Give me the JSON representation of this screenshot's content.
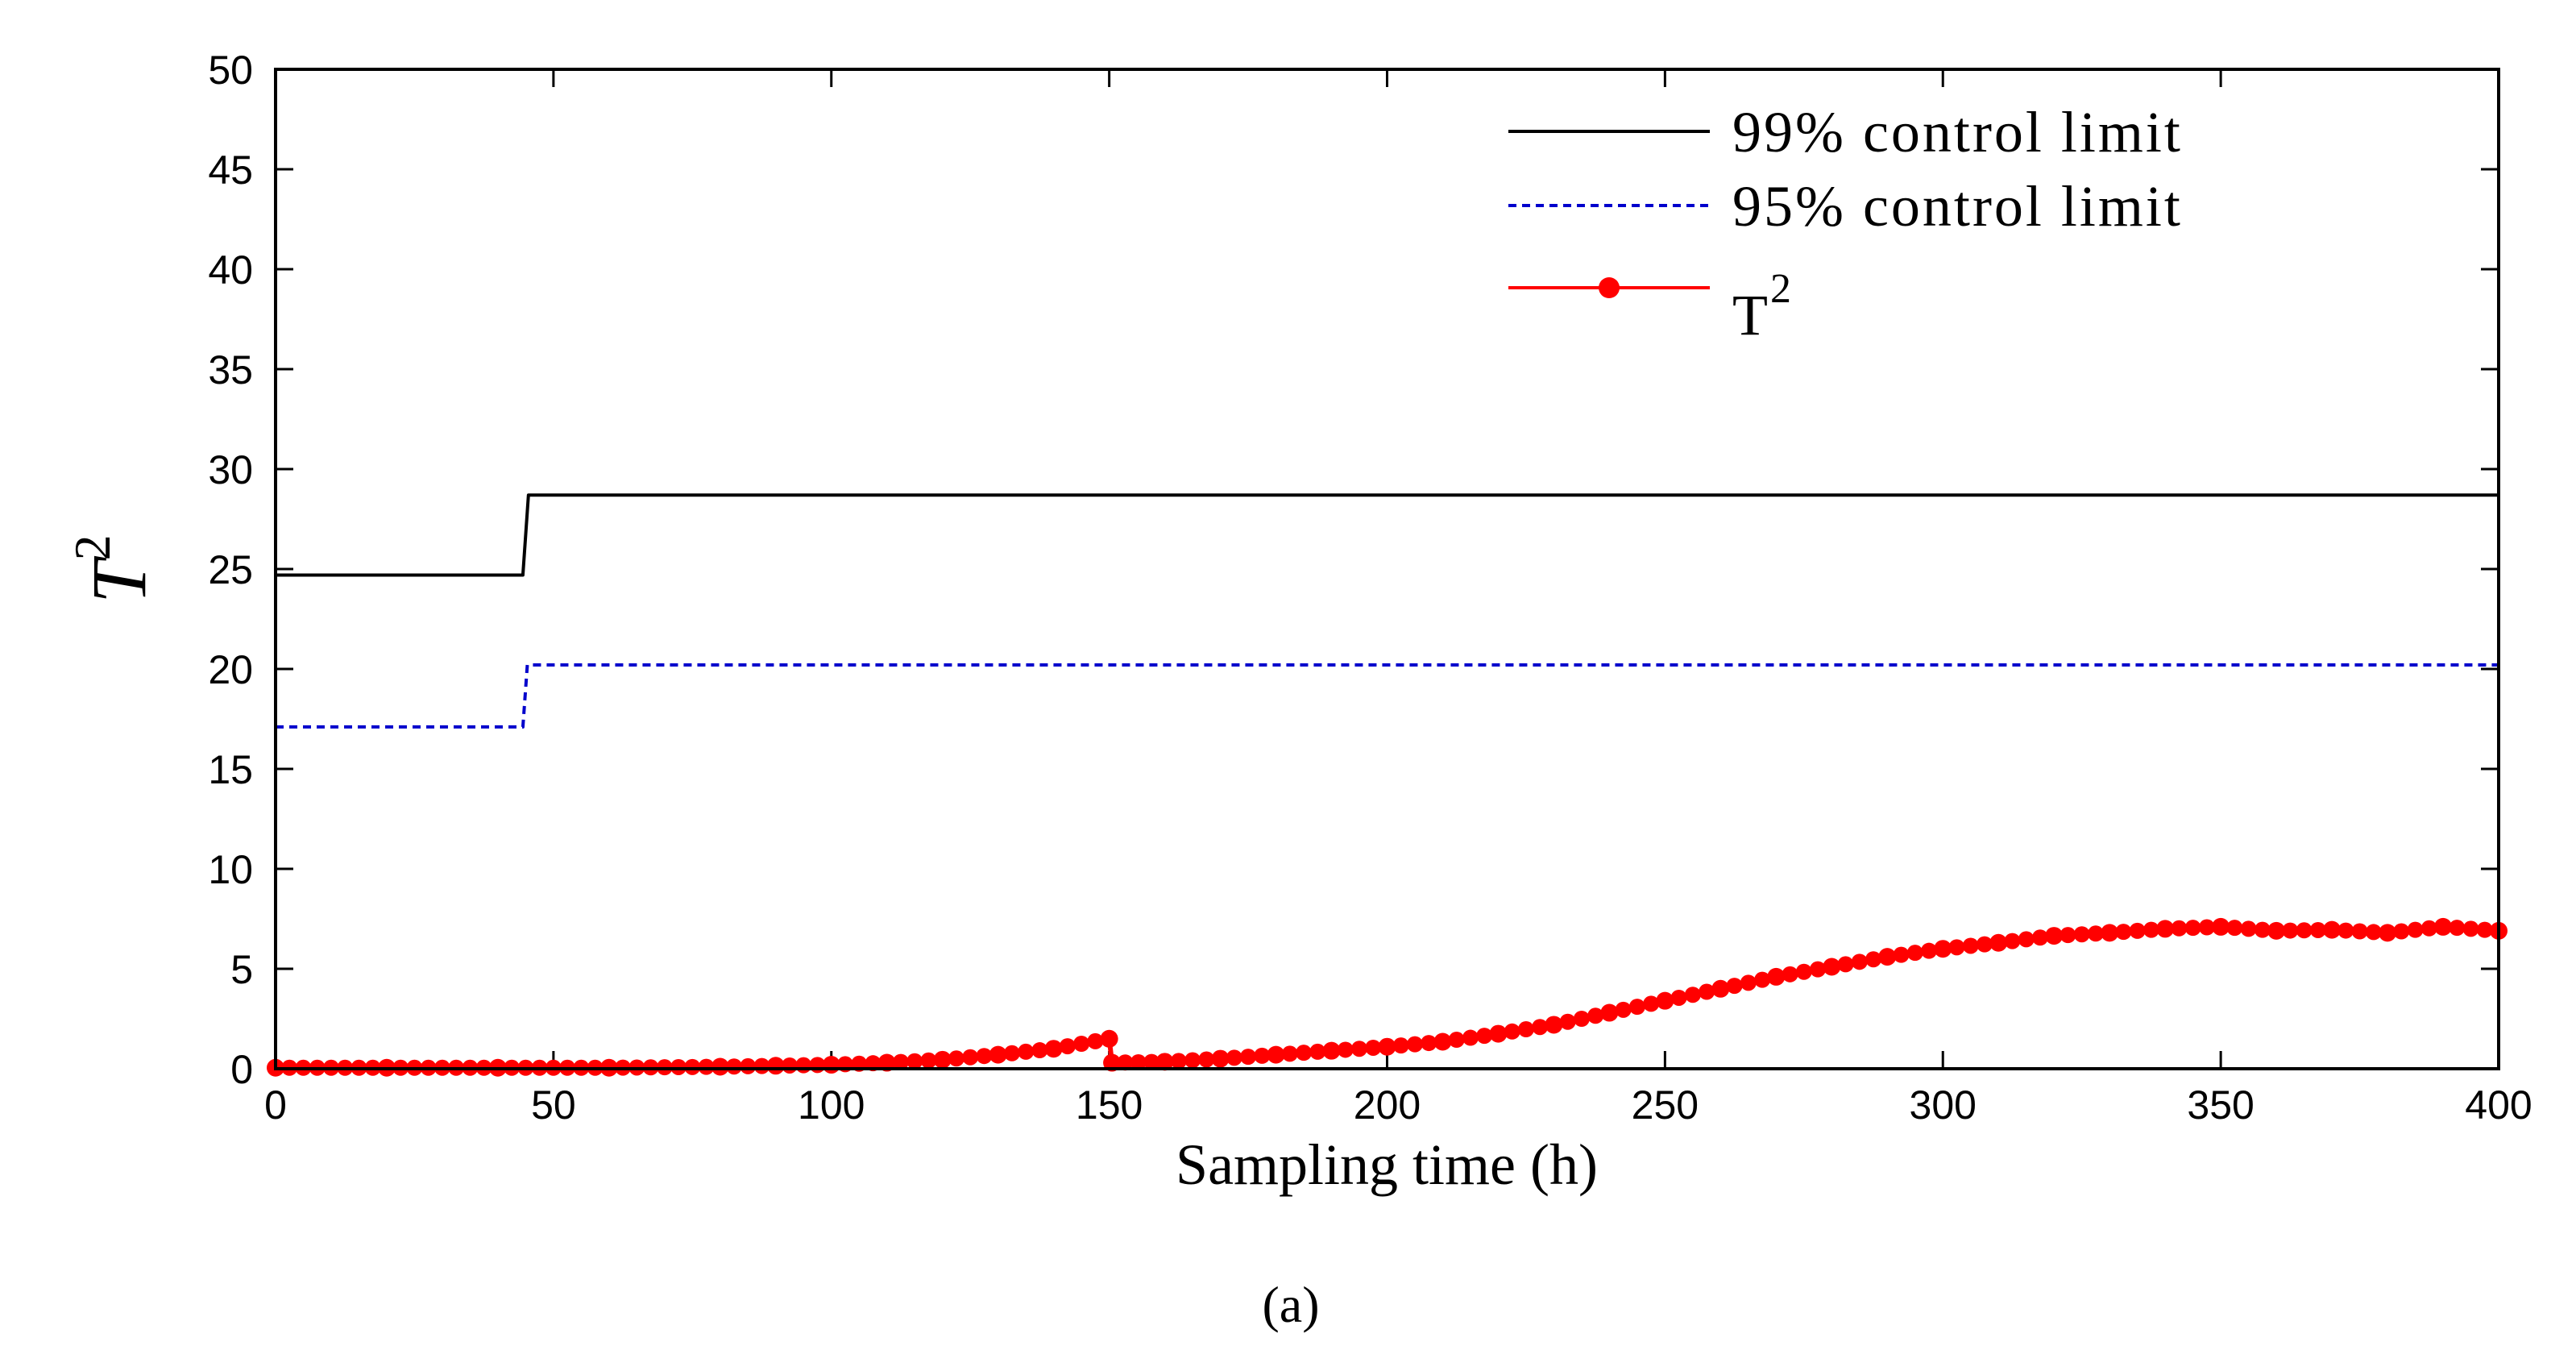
{
  "chart_data": {
    "type": "line",
    "title": "",
    "xlabel": "Sampling time (h)",
    "ylabel_base": "T",
    "ylabel_sup": "2",
    "xlim": [
      0,
      400
    ],
    "ylim": [
      0,
      50
    ],
    "xticks": [
      0,
      50,
      100,
      150,
      200,
      250,
      300,
      350,
      400
    ],
    "yticks": [
      0,
      5,
      10,
      15,
      20,
      25,
      30,
      35,
      40,
      45,
      50
    ],
    "grid": false,
    "legend_position": "top-right",
    "panel_label": "(a)",
    "series": [
      {
        "name": "99% control limit",
        "style": "solid",
        "color": "#000000",
        "points": [
          [
            0,
            24.7
          ],
          [
            44.5,
            24.7
          ],
          [
            45.5,
            28.7
          ],
          [
            400,
            28.7
          ]
        ]
      },
      {
        "name": "95% control limit",
        "style": "dashed",
        "color": "#0000cc",
        "points": [
          [
            0,
            17.1
          ],
          [
            44.5,
            17.1
          ],
          [
            45.3,
            20.2
          ],
          [
            400,
            20.2
          ]
        ]
      },
      {
        "name": "T",
        "name_sup": "2",
        "style": "solid-markers",
        "color": "#ff0000",
        "points": [
          [
            0,
            0.05
          ],
          [
            20,
            0.05
          ],
          [
            40,
            0.05
          ],
          [
            60,
            0.05
          ],
          [
            80,
            0.1
          ],
          [
            90,
            0.15
          ],
          [
            100,
            0.2
          ],
          [
            110,
            0.3
          ],
          [
            120,
            0.45
          ],
          [
            130,
            0.7
          ],
          [
            140,
            1.0
          ],
          [
            150,
            1.5
          ],
          [
            150.5,
            0.3
          ],
          [
            160,
            0.35
          ],
          [
            170,
            0.5
          ],
          [
            180,
            0.7
          ],
          [
            190,
            0.9
          ],
          [
            200,
            1.1
          ],
          [
            210,
            1.35
          ],
          [
            220,
            1.75
          ],
          [
            230,
            2.2
          ],
          [
            240,
            2.8
          ],
          [
            250,
            3.4
          ],
          [
            260,
            4.0
          ],
          [
            270,
            4.6
          ],
          [
            280,
            5.1
          ],
          [
            290,
            5.6
          ],
          [
            300,
            6.0
          ],
          [
            310,
            6.3
          ],
          [
            320,
            6.65
          ],
          [
            330,
            6.8
          ],
          [
            340,
            7.0
          ],
          [
            350,
            7.1
          ],
          [
            360,
            6.9
          ],
          [
            370,
            6.95
          ],
          [
            380,
            6.8
          ],
          [
            390,
            7.1
          ],
          [
            400,
            6.9
          ]
        ]
      }
    ]
  }
}
